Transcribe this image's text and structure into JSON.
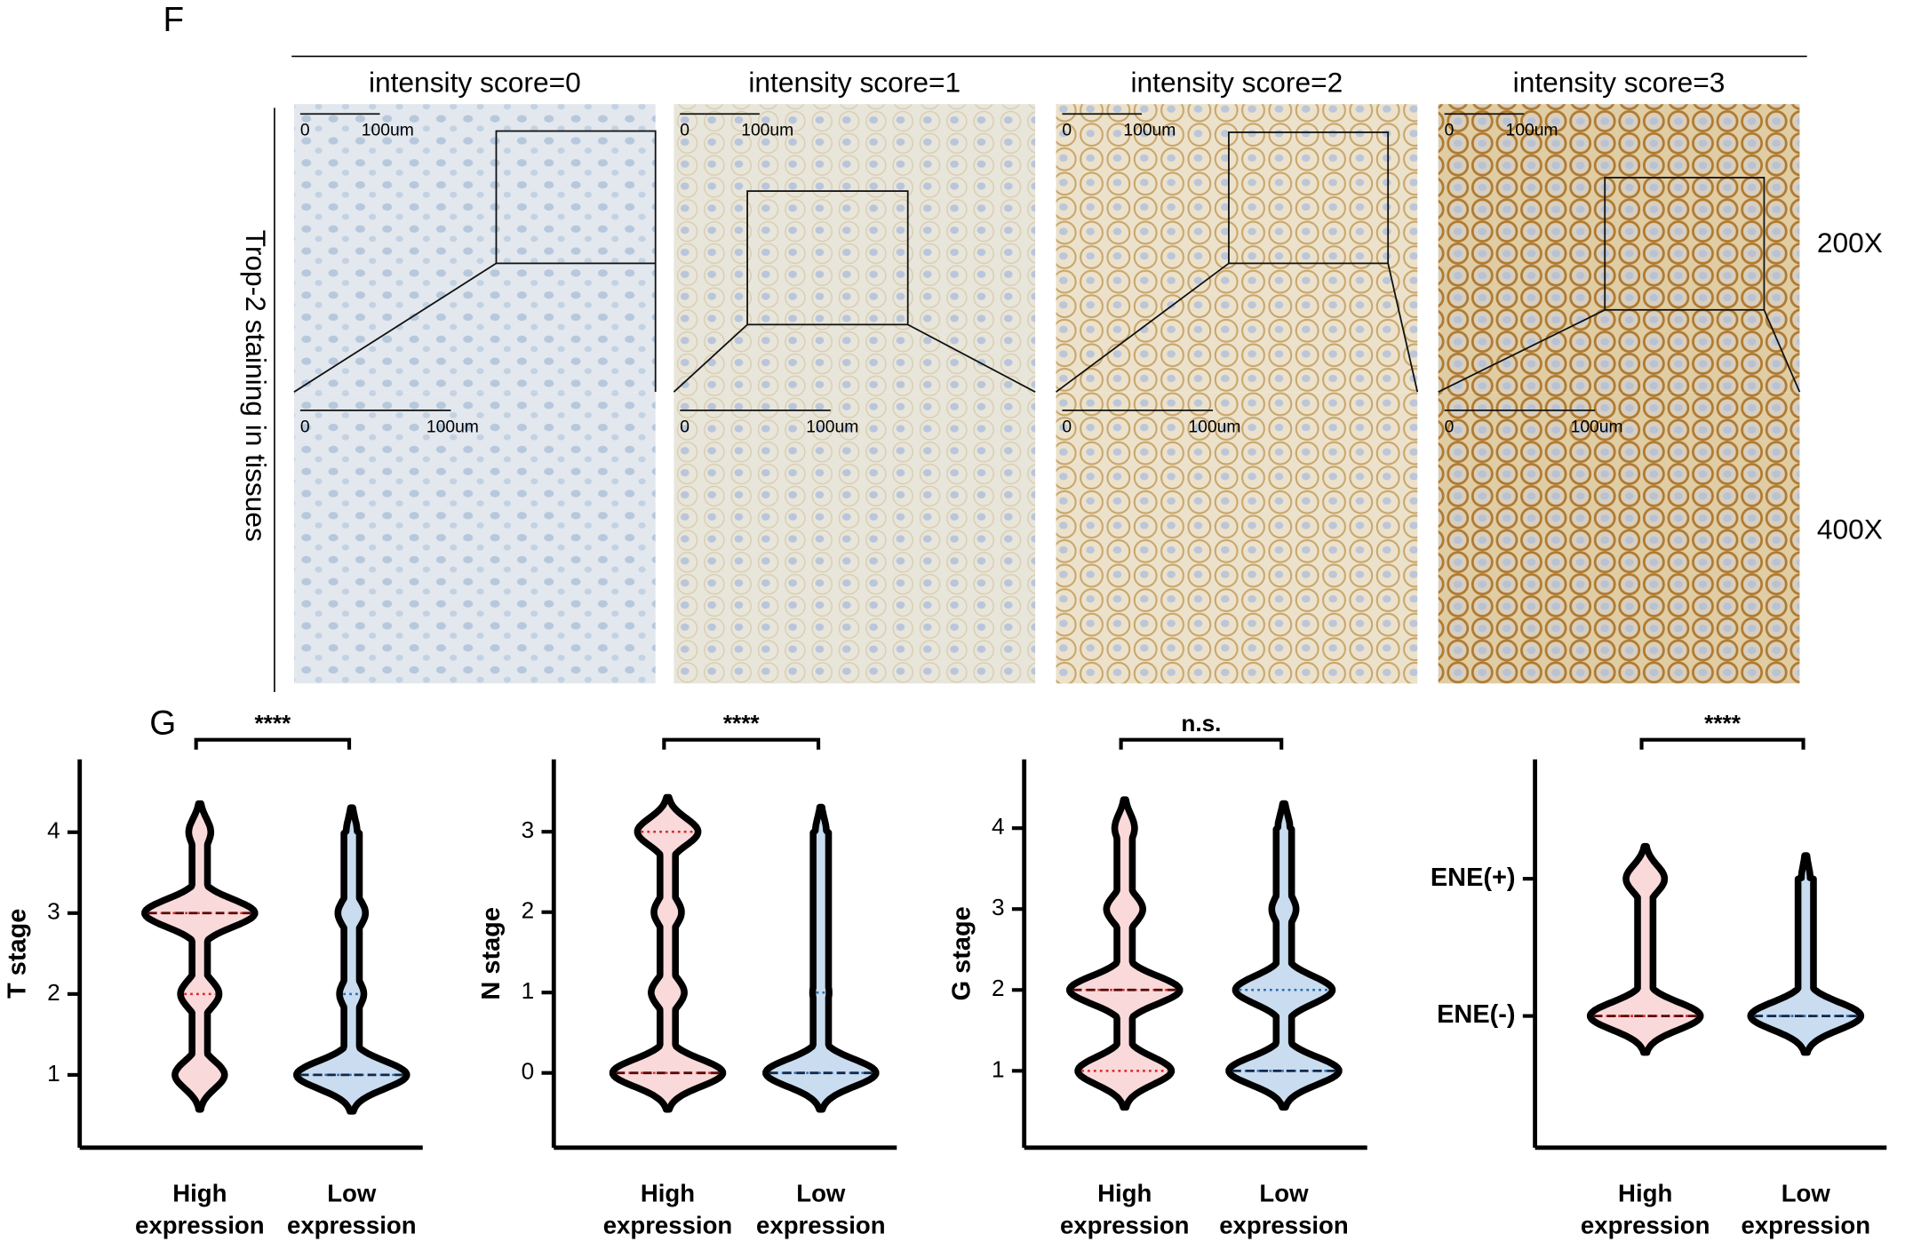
{
  "panel_f": {
    "label": "F",
    "column_titles": [
      "intensity score=0",
      "intensity score=1",
      "intensity score=2",
      "intensity score=3"
    ],
    "row_axis_label": "Trop-2 staining in tissues",
    "row_labels": [
      "200X",
      "400X"
    ],
    "scale_bar": {
      "start": "0",
      "end": "100um"
    }
  },
  "panel_g_label": "G",
  "chart_data": [
    {
      "type": "violin",
      "ylabel": "T stage",
      "significance": "****",
      "categories": [
        "High expression",
        "Low expression"
      ],
      "ylim": [
        0.1,
        4.9
      ],
      "yticks": [
        1,
        2,
        3,
        4
      ],
      "levels": [
        1,
        2,
        3,
        4
      ],
      "series": [
        {
          "name": "High expression",
          "color": "#f9d9d9",
          "line_color": "#d9262b",
          "density": [
            0.45,
            0.35,
            1,
            0.2
          ],
          "median": 3,
          "quartiles": [
            2,
            3
          ]
        },
        {
          "name": "Low expression",
          "color": "#c9dcf0",
          "line_color": "#2b6cb0",
          "density": [
            1,
            0.22,
            0.25,
            0.1
          ],
          "median": 1,
          "quartiles": [
            1,
            2
          ]
        }
      ]
    },
    {
      "type": "violin",
      "ylabel": "N stage",
      "significance": "****",
      "categories": [
        "High expression",
        "Low expression"
      ],
      "ylim": [
        -0.93,
        3.9
      ],
      "yticks": [
        0,
        1,
        2,
        3
      ],
      "levels": [
        0,
        1,
        2,
        3
      ],
      "series": [
        {
          "name": "High expression",
          "color": "#f9d9d9",
          "line_color": "#d9262b",
          "density": [
            1,
            0.3,
            0.25,
            0.55
          ],
          "median": 0,
          "quartiles": [
            0,
            3
          ]
        },
        {
          "name": "Low expression",
          "color": "#c9dcf0",
          "line_color": "#2b6cb0",
          "density": [
            1,
            0.15,
            0.1,
            0.1
          ],
          "median": 0,
          "quartiles": [
            0,
            1
          ]
        }
      ]
    },
    {
      "type": "violin",
      "ylabel": "G stage",
      "significance": "n.s.",
      "categories": [
        "High expression",
        "Low expression"
      ],
      "ylim": [
        0.05,
        4.85
      ],
      "yticks": [
        1,
        2,
        3,
        4
      ],
      "levels": [
        1,
        2,
        3,
        4
      ],
      "series": [
        {
          "name": "High expression",
          "color": "#f9d9d9",
          "line_color": "#d9262b",
          "density": [
            0.85,
            1,
            0.33,
            0.18
          ],
          "median": 2,
          "quartiles": [
            1,
            2
          ]
        },
        {
          "name": "Low expression",
          "color": "#c9dcf0",
          "line_color": "#2b6cb0",
          "density": [
            1,
            0.88,
            0.22,
            0.11
          ],
          "median": 1,
          "quartiles": [
            1,
            2
          ]
        }
      ]
    },
    {
      "type": "violin",
      "significance": "****",
      "categories": [
        "High expression",
        "Low expression"
      ],
      "ylim": [
        -0.96,
        1.87
      ],
      "yticks": [
        {
          "value": 0,
          "label": "ENE(-)"
        },
        {
          "value": 1,
          "label": "ENE(+)"
        }
      ],
      "levels": [
        0,
        1
      ],
      "series": [
        {
          "name": "High expression",
          "color": "#f9d9d9",
          "line_color": "#d9262b",
          "density": [
            1,
            0.35
          ],
          "median": 0,
          "quartiles": [
            0,
            0
          ]
        },
        {
          "name": "Low expression",
          "color": "#c9dcf0",
          "line_color": "#2b6cb0",
          "density": [
            1,
            0.08
          ],
          "median": 0,
          "quartiles": [
            0,
            0
          ]
        }
      ]
    }
  ]
}
